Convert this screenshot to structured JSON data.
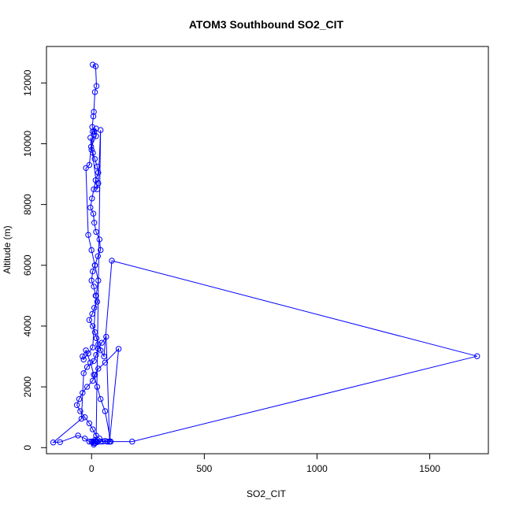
{
  "chart_data": {
    "type": "scatter",
    "title": "ATOM3 Southbound SO2_CIT",
    "xlabel": "SO2_CIT",
    "ylabel": "Altitude (m)",
    "xlim": [
      -200,
      1760
    ],
    "ylim": [
      -200,
      13200
    ],
    "xticks": [
      0,
      500,
      1000,
      1500
    ],
    "yticks": [
      0,
      2000,
      4000,
      6000,
      8000,
      10000,
      12000
    ],
    "grid": false,
    "series_color": "#0000ff",
    "series": [
      {
        "x": [
          5,
          18,
          22,
          15,
          10,
          8,
          3,
          12,
          20,
          -2,
          6,
          14,
          25,
          30,
          18,
          10,
          2,
          -5,
          8,
          12,
          20,
          35,
          40,
          28,
          15,
          5,
          0,
          10,
          18,
          25,
          12,
          3,
          -10,
          5,
          15,
          22,
          30,
          40,
          55,
          90,
          1710,
          180,
          70,
          80,
          65,
          45,
          30,
          20,
          10,
          -20,
          -35,
          -45,
          -170,
          -140,
          -60,
          -30,
          -10,
          10,
          25,
          40,
          60,
          80,
          120,
          60,
          30,
          15,
          5,
          -20,
          -40,
          -55,
          -65,
          -50,
          -30,
          -10,
          5,
          20,
          35,
          50,
          70,
          85,
          60,
          40,
          25,
          10,
          -5,
          -25,
          -40,
          -35,
          -15,
          5,
          20,
          30,
          15,
          0,
          -15,
          -25,
          -10,
          5,
          20,
          10,
          0,
          -5,
          25,
          30,
          40,
          20,
          10,
          15,
          0,
          5,
          10,
          15,
          20,
          25
        ],
        "y": [
          12600,
          12550,
          11900,
          11700,
          11050,
          10900,
          10550,
          10400,
          10250,
          9900,
          9700,
          9500,
          9250,
          9050,
          8800,
          8500,
          8200,
          7900,
          7700,
          7400,
          7100,
          6850,
          6500,
          6300,
          6000,
          5800,
          5500,
          5300,
          5000,
          4800,
          4600,
          4400,
          4200,
          4000,
          3800,
          3600,
          3400,
          3200,
          3000,
          6150,
          3010,
          200,
          200,
          200,
          3650,
          3450,
          3250,
          3050,
          2850,
          2650,
          2450,
          950,
          170,
          180,
          400,
          300,
          200,
          150,
          180,
          200,
          220,
          200,
          3250,
          2800,
          2600,
          2400,
          2200,
          2000,
          1800,
          1600,
          1400,
          1200,
          1000,
          800,
          600,
          400,
          300,
          200,
          200,
          200,
          1200,
          1600,
          2000,
          2400,
          2800,
          3200,
          3000,
          2900,
          3100,
          3300,
          5000,
          5500,
          6000,
          6500,
          7000,
          9200,
          9300,
          10400,
          10500,
          10300,
          9800,
          10200,
          8500,
          8700,
          10450,
          200,
          100,
          150,
          200,
          180,
          200,
          250,
          220,
          200
        ]
      }
    ]
  }
}
